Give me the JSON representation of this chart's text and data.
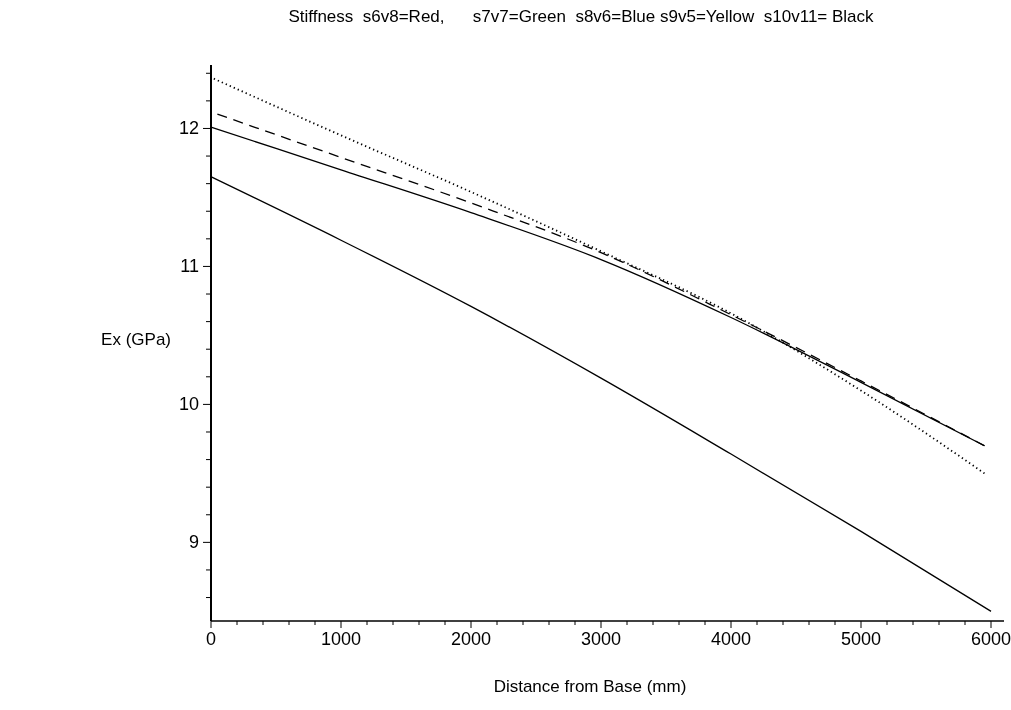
{
  "chart_data": {
    "type": "line",
    "title": "Stiffness  s6v8=Red,      s7v7=Green  s8v6=Blue s9v5=Yellow  s10v11= Black",
    "xlabel": "Distance from Base  (mm)",
    "ylabel": "Ex (GPa)",
    "x": [
      0,
      1000,
      2000,
      3000,
      4000,
      5000,
      5950
    ],
    "series": [
      {
        "color": "#000000",
        "line_style": "dotted",
        "values": [
          12.37,
          11.95,
          11.54,
          11.11,
          10.66,
          10.1,
          9.5
        ]
      },
      {
        "color": "#000000",
        "line_style": "dashed",
        "values": [
          12.12,
          11.79,
          11.46,
          11.1,
          10.65,
          10.17,
          9.7
        ]
      },
      {
        "color": "#000000",
        "line_style": "solid",
        "values": [
          12.01,
          11.7,
          11.39,
          11.05,
          10.63,
          10.16,
          9.7
        ]
      },
      {
        "color": "#000000",
        "line_style": "solid",
        "x": [
          0,
          1000,
          2000,
          3000,
          4000,
          5000,
          6000
        ],
        "values": [
          11.65,
          11.19,
          10.71,
          10.19,
          9.64,
          9.08,
          8.5
        ]
      }
    ],
    "xlim": [
      0,
      6100
    ],
    "ylim": [
      8.43,
      12.46
    ],
    "xticks": [
      0,
      {
        "value": 200,
        "label": null
      },
      {
        "value": 400,
        "label": null
      },
      {
        "value": 600,
        "label": null
      },
      {
        "value": 800,
        "label": null
      },
      1000,
      {
        "value": 1200,
        "label": null
      },
      {
        "value": 1400,
        "label": null
      },
      {
        "value": 1600,
        "label": null
      },
      {
        "value": 1800,
        "label": null
      },
      2000,
      {
        "value": 2200,
        "label": null
      },
      {
        "value": 2400,
        "label": null
      },
      {
        "value": 2600,
        "label": null
      },
      {
        "value": 2800,
        "label": null
      },
      3000,
      {
        "value": 3200,
        "label": null
      },
      {
        "value": 3400,
        "label": null
      },
      {
        "value": 3600,
        "label": null
      },
      {
        "value": 3800,
        "label": null
      },
      4000,
      {
        "value": 4200,
        "label": null
      },
      {
        "value": 4400,
        "label": null
      },
      {
        "value": 4600,
        "label": null
      },
      {
        "value": 4800,
        "label": null
      },
      5000,
      {
        "value": 5200,
        "label": null
      },
      {
        "value": 5400,
        "label": null
      },
      {
        "value": 5600,
        "label": null
      },
      {
        "value": 5800,
        "label": null
      },
      6000
    ],
    "yticks": [
      {
        "value": 8.6,
        "label": null
      },
      {
        "value": 8.8,
        "label": null
      },
      9,
      {
        "value": 9.2,
        "label": null
      },
      {
        "value": 9.4,
        "label": null
      },
      {
        "value": 9.6,
        "label": null
      },
      {
        "value": 9.8,
        "label": null
      },
      10,
      {
        "value": 10.2,
        "label": null
      },
      {
        "value": 10.4,
        "label": null
      },
      {
        "value": 10.6,
        "label": null
      },
      {
        "value": 10.8,
        "label": null
      },
      11,
      {
        "value": 11.2,
        "label": null
      },
      {
        "value": 11.4,
        "label": null
      },
      {
        "value": 11.6,
        "label": null
      },
      {
        "value": 11.8,
        "label": null
      },
      12,
      {
        "value": 12.2,
        "label": null
      },
      {
        "value": 12.4,
        "label": null
      }
    ],
    "grid": false,
    "marker": "none"
  }
}
